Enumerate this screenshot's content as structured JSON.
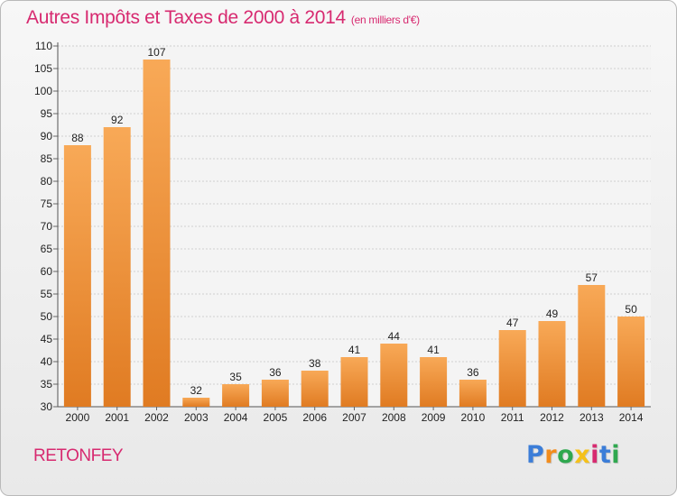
{
  "title": {
    "main": "Autres Impôts et Taxes de 2000 à 2014",
    "unit": "(en milliers d'€)"
  },
  "location": "RETONFEY",
  "logo": {
    "letters": [
      "P",
      "r",
      "o",
      "x",
      "i",
      "t",
      "i"
    ],
    "colors": [
      "#3b7dd8",
      "#f28c1c",
      "#2fa84f",
      "#f5c11a",
      "#d72a70",
      "#3b7dd8",
      "#2fa84f"
    ]
  },
  "colors": {
    "accent": "#d72a70",
    "bar_light": "#f8a957",
    "bar_dark": "#e07b22",
    "grid": "#cfcfcf"
  },
  "chart_data": {
    "type": "bar",
    "categories": [
      "2000",
      "2001",
      "2002",
      "2003",
      "2004",
      "2005",
      "2006",
      "2007",
      "2008",
      "2009",
      "2010",
      "2011",
      "2012",
      "2013",
      "2014"
    ],
    "values": [
      88,
      92,
      107,
      32,
      35,
      36,
      38,
      41,
      44,
      41,
      36,
      47,
      49,
      57,
      50
    ],
    "ylim": [
      30,
      110
    ],
    "yticks": [
      30,
      35,
      40,
      45,
      50,
      55,
      60,
      65,
      70,
      75,
      80,
      85,
      90,
      95,
      100,
      105,
      110
    ],
    "grid": true,
    "data_labels": true
  }
}
